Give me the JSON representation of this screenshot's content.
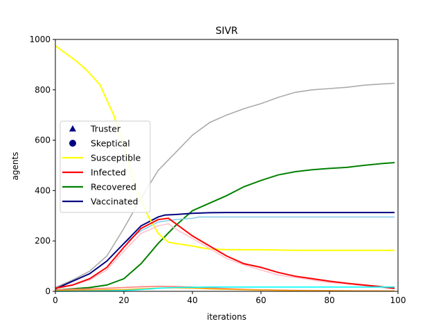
{
  "chart_data": {
    "type": "line",
    "title": "SIVR",
    "xlabel": "iterations",
    "ylabel": "agents",
    "xlim": [
      0,
      100
    ],
    "ylim": [
      0,
      1000
    ],
    "xticks": [
      0,
      20,
      40,
      60,
      80,
      100
    ],
    "yticks": [
      0,
      200,
      400,
      600,
      800,
      1000
    ],
    "grid": false,
    "legend_position": "center-left",
    "legend": [
      {
        "label": "Truster",
        "marker": "triangle",
        "color": "#000080"
      },
      {
        "label": "Skeptical",
        "marker": "circle",
        "color": "#000080"
      },
      {
        "label": "Susceptible",
        "line": true,
        "color": "#ffff00"
      },
      {
        "label": "Infected",
        "line": true,
        "color": "#ff0000"
      },
      {
        "label": "Recovered",
        "line": true,
        "color": "#008000"
      },
      {
        "label": "Vaccinated",
        "line": true,
        "color": "#000080"
      }
    ],
    "series": [
      {
        "color": "#aaaaaa",
        "x": [
          0,
          5,
          10,
          15,
          20,
          25,
          30,
          35,
          40,
          45,
          50,
          55,
          60,
          65,
          70,
          75,
          80,
          85,
          90,
          95,
          99
        ],
        "values": [
          15,
          45,
          80,
          140,
          250,
          370,
          480,
          550,
          620,
          670,
          700,
          725,
          745,
          770,
          790,
          800,
          805,
          810,
          818,
          823,
          826
        ]
      },
      {
        "name": "Recovered",
        "color": "#008000",
        "x": [
          0,
          5,
          10,
          15,
          20,
          25,
          30,
          35,
          40,
          45,
          50,
          55,
          60,
          65,
          70,
          75,
          80,
          85,
          90,
          95,
          99
        ],
        "values": [
          5,
          10,
          15,
          25,
          50,
          110,
          190,
          260,
          320,
          350,
          380,
          415,
          440,
          462,
          475,
          483,
          488,
          492,
          500,
          507,
          511
        ]
      },
      {
        "color": "#87ceeb",
        "x": [
          0,
          5,
          10,
          15,
          20,
          25,
          30,
          35,
          40,
          42,
          45,
          50,
          60,
          70,
          80,
          90,
          99
        ],
        "values": [
          10,
          40,
          70,
          120,
          190,
          240,
          275,
          285,
          290,
          295,
          295,
          295,
          295,
          295,
          295,
          295,
          295
        ]
      },
      {
        "name": "Vaccinated",
        "color": "#000080",
        "x": [
          0,
          5,
          10,
          15,
          20,
          25,
          30,
          32,
          35,
          40,
          45,
          50,
          60,
          70,
          80,
          90,
          99
        ],
        "values": [
          10,
          40,
          70,
          120,
          190,
          260,
          295,
          303,
          305,
          310,
          312,
          313,
          313,
          313,
          313,
          313,
          313
        ]
      },
      {
        "name": "Susceptible",
        "color": "#ffff00",
        "x": [
          0,
          3,
          6,
          9,
          13,
          17,
          20,
          23,
          27,
          30,
          33,
          35,
          40,
          43,
          45,
          50,
          60,
          70,
          80,
          90,
          99
        ],
        "values": [
          975,
          945,
          915,
          880,
          820,
          700,
          580,
          430,
          300,
          230,
          195,
          190,
          180,
          172,
          168,
          165,
          165,
          163,
          163,
          163,
          163
        ]
      },
      {
        "color": "#ffc0cb",
        "x": [
          0,
          5,
          10,
          15,
          20,
          25,
          30,
          33,
          36,
          40,
          45,
          50,
          55,
          60,
          65,
          70,
          75,
          80,
          85,
          90,
          95,
          99
        ],
        "values": [
          12,
          25,
          45,
          85,
          160,
          230,
          260,
          268,
          240,
          210,
          170,
          130,
          105,
          85,
          65,
          55,
          45,
          35,
          30,
          22,
          15,
          10
        ]
      },
      {
        "name": "Infected",
        "color": "#ff0000",
        "x": [
          0,
          5,
          10,
          15,
          20,
          25,
          30,
          33,
          36,
          40,
          45,
          50,
          55,
          60,
          65,
          70,
          75,
          80,
          85,
          90,
          95,
          99
        ],
        "values": [
          12,
          25,
          50,
          95,
          175,
          250,
          285,
          290,
          260,
          220,
          180,
          140,
          110,
          95,
          75,
          60,
          50,
          40,
          32,
          25,
          18,
          12
        ]
      },
      {
        "color": "#fa8072",
        "x": [
          0,
          5,
          10,
          15,
          20,
          25,
          30,
          35,
          40,
          45,
          50,
          55,
          60,
          70,
          80,
          90,
          99
        ],
        "values": [
          5,
          8,
          10,
          12,
          15,
          18,
          20,
          19,
          17,
          14,
          11,
          8,
          6,
          4,
          3,
          2,
          1
        ]
      },
      {
        "color": "#ffa500",
        "x": [
          0,
          5,
          10,
          15,
          20,
          25,
          30,
          35,
          40,
          45,
          50,
          60,
          70,
          80,
          90,
          99
        ],
        "values": [
          3,
          4,
          5,
          6,
          7,
          10,
          13,
          14,
          13,
          10,
          8,
          5,
          3,
          2,
          1,
          1
        ]
      },
      {
        "color": "#00ffff",
        "x": [
          0,
          10,
          20,
          25,
          30,
          35,
          40,
          45,
          50,
          60,
          70,
          80,
          90,
          99
        ],
        "values": [
          0,
          1,
          3,
          7,
          12,
          15,
          16,
          17,
          17,
          17,
          17,
          17,
          17,
          17
        ]
      }
    ]
  }
}
